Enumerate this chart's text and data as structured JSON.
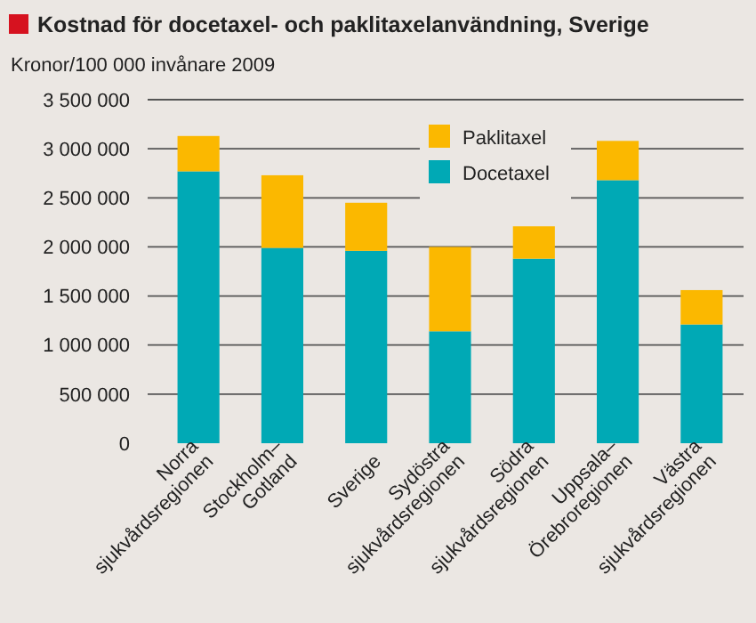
{
  "chart_data": {
    "type": "bar",
    "title": "Kostnad för docetaxel- och paklitaxelanvändning, Sverige",
    "subtitle": "Kronor/100 000 invånare 2009",
    "categories": [
      "Norra\nsjukvårdsregionen",
      "Stockholm–\nGotland",
      "Sverige",
      "Sydöstra\nsjukvårdsregionen",
      "Södra\nsjukvårdsregionen",
      "Uppsala–\nÖrebroregionen",
      "Västra\nsjukvårdsregionen"
    ],
    "stacked": true,
    "series": [
      {
        "name": "Docetaxel",
        "color": "#00a9b5",
        "values": [
          2770000,
          1990000,
          1960000,
          1140000,
          1880000,
          2680000,
          1210000
        ]
      },
      {
        "name": "Paklitaxel",
        "color": "#fbb800",
        "values": [
          360000,
          740000,
          490000,
          860000,
          330000,
          400000,
          350000
        ]
      }
    ],
    "ylim": [
      0,
      3500000
    ],
    "yticks": [
      0,
      {
        "value": 500000,
        "label": "500 000"
      },
      {
        "value": 1000000,
        "label": "1 000 000"
      },
      {
        "value": 1500000,
        "label": "1 500 000"
      },
      {
        "value": 2000000,
        "label": "2 000 000"
      },
      {
        "value": 2500000,
        "label": "2 500 000"
      },
      {
        "value": 3000000,
        "label": "3 000 000"
      },
      {
        "value": 3500000,
        "label": "3 500 000"
      }
    ],
    "grid": "y",
    "legend": "top right"
  }
}
